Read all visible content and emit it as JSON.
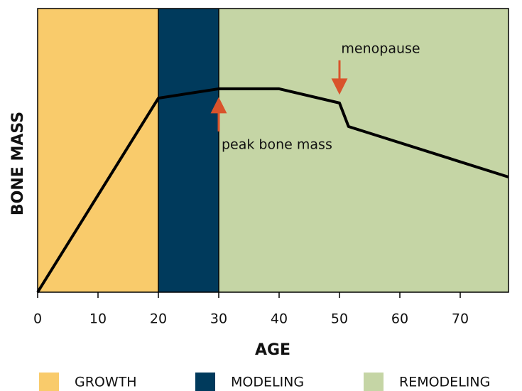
{
  "chart_data": {
    "type": "line",
    "x_label": "AGE",
    "y_label": "BONE MASS",
    "x": [
      0,
      20,
      30,
      40,
      50,
      51.5,
      78
    ],
    "values": [
      0,
      68.4,
      71.7,
      71.7,
      66.7,
      58.4,
      40.6
    ],
    "color": "#000000",
    "xlim": [
      0,
      78
    ],
    "ylim": [
      0,
      100
    ],
    "xticks": [
      0,
      10,
      20,
      30,
      40,
      50,
      60,
      70
    ],
    "regions": [
      {
        "name": "GROWTH",
        "start": 0,
        "end": 20,
        "color": "#f9cb6b"
      },
      {
        "name": "MODELING",
        "start": 20,
        "end": 30,
        "color": "#003a5c"
      },
      {
        "name": "REMODELING",
        "start": 30,
        "end": 78,
        "color": "#c5d5a5"
      }
    ],
    "annotations": [
      {
        "text": "menopause",
        "x": 50,
        "y": 66.7,
        "arrow": "down",
        "color": "#d9532b"
      },
      {
        "text": "peak bone mass",
        "x": 30,
        "y": 71.7,
        "arrow": "up",
        "color": "#d9532b"
      }
    ],
    "legend": "bottom"
  }
}
